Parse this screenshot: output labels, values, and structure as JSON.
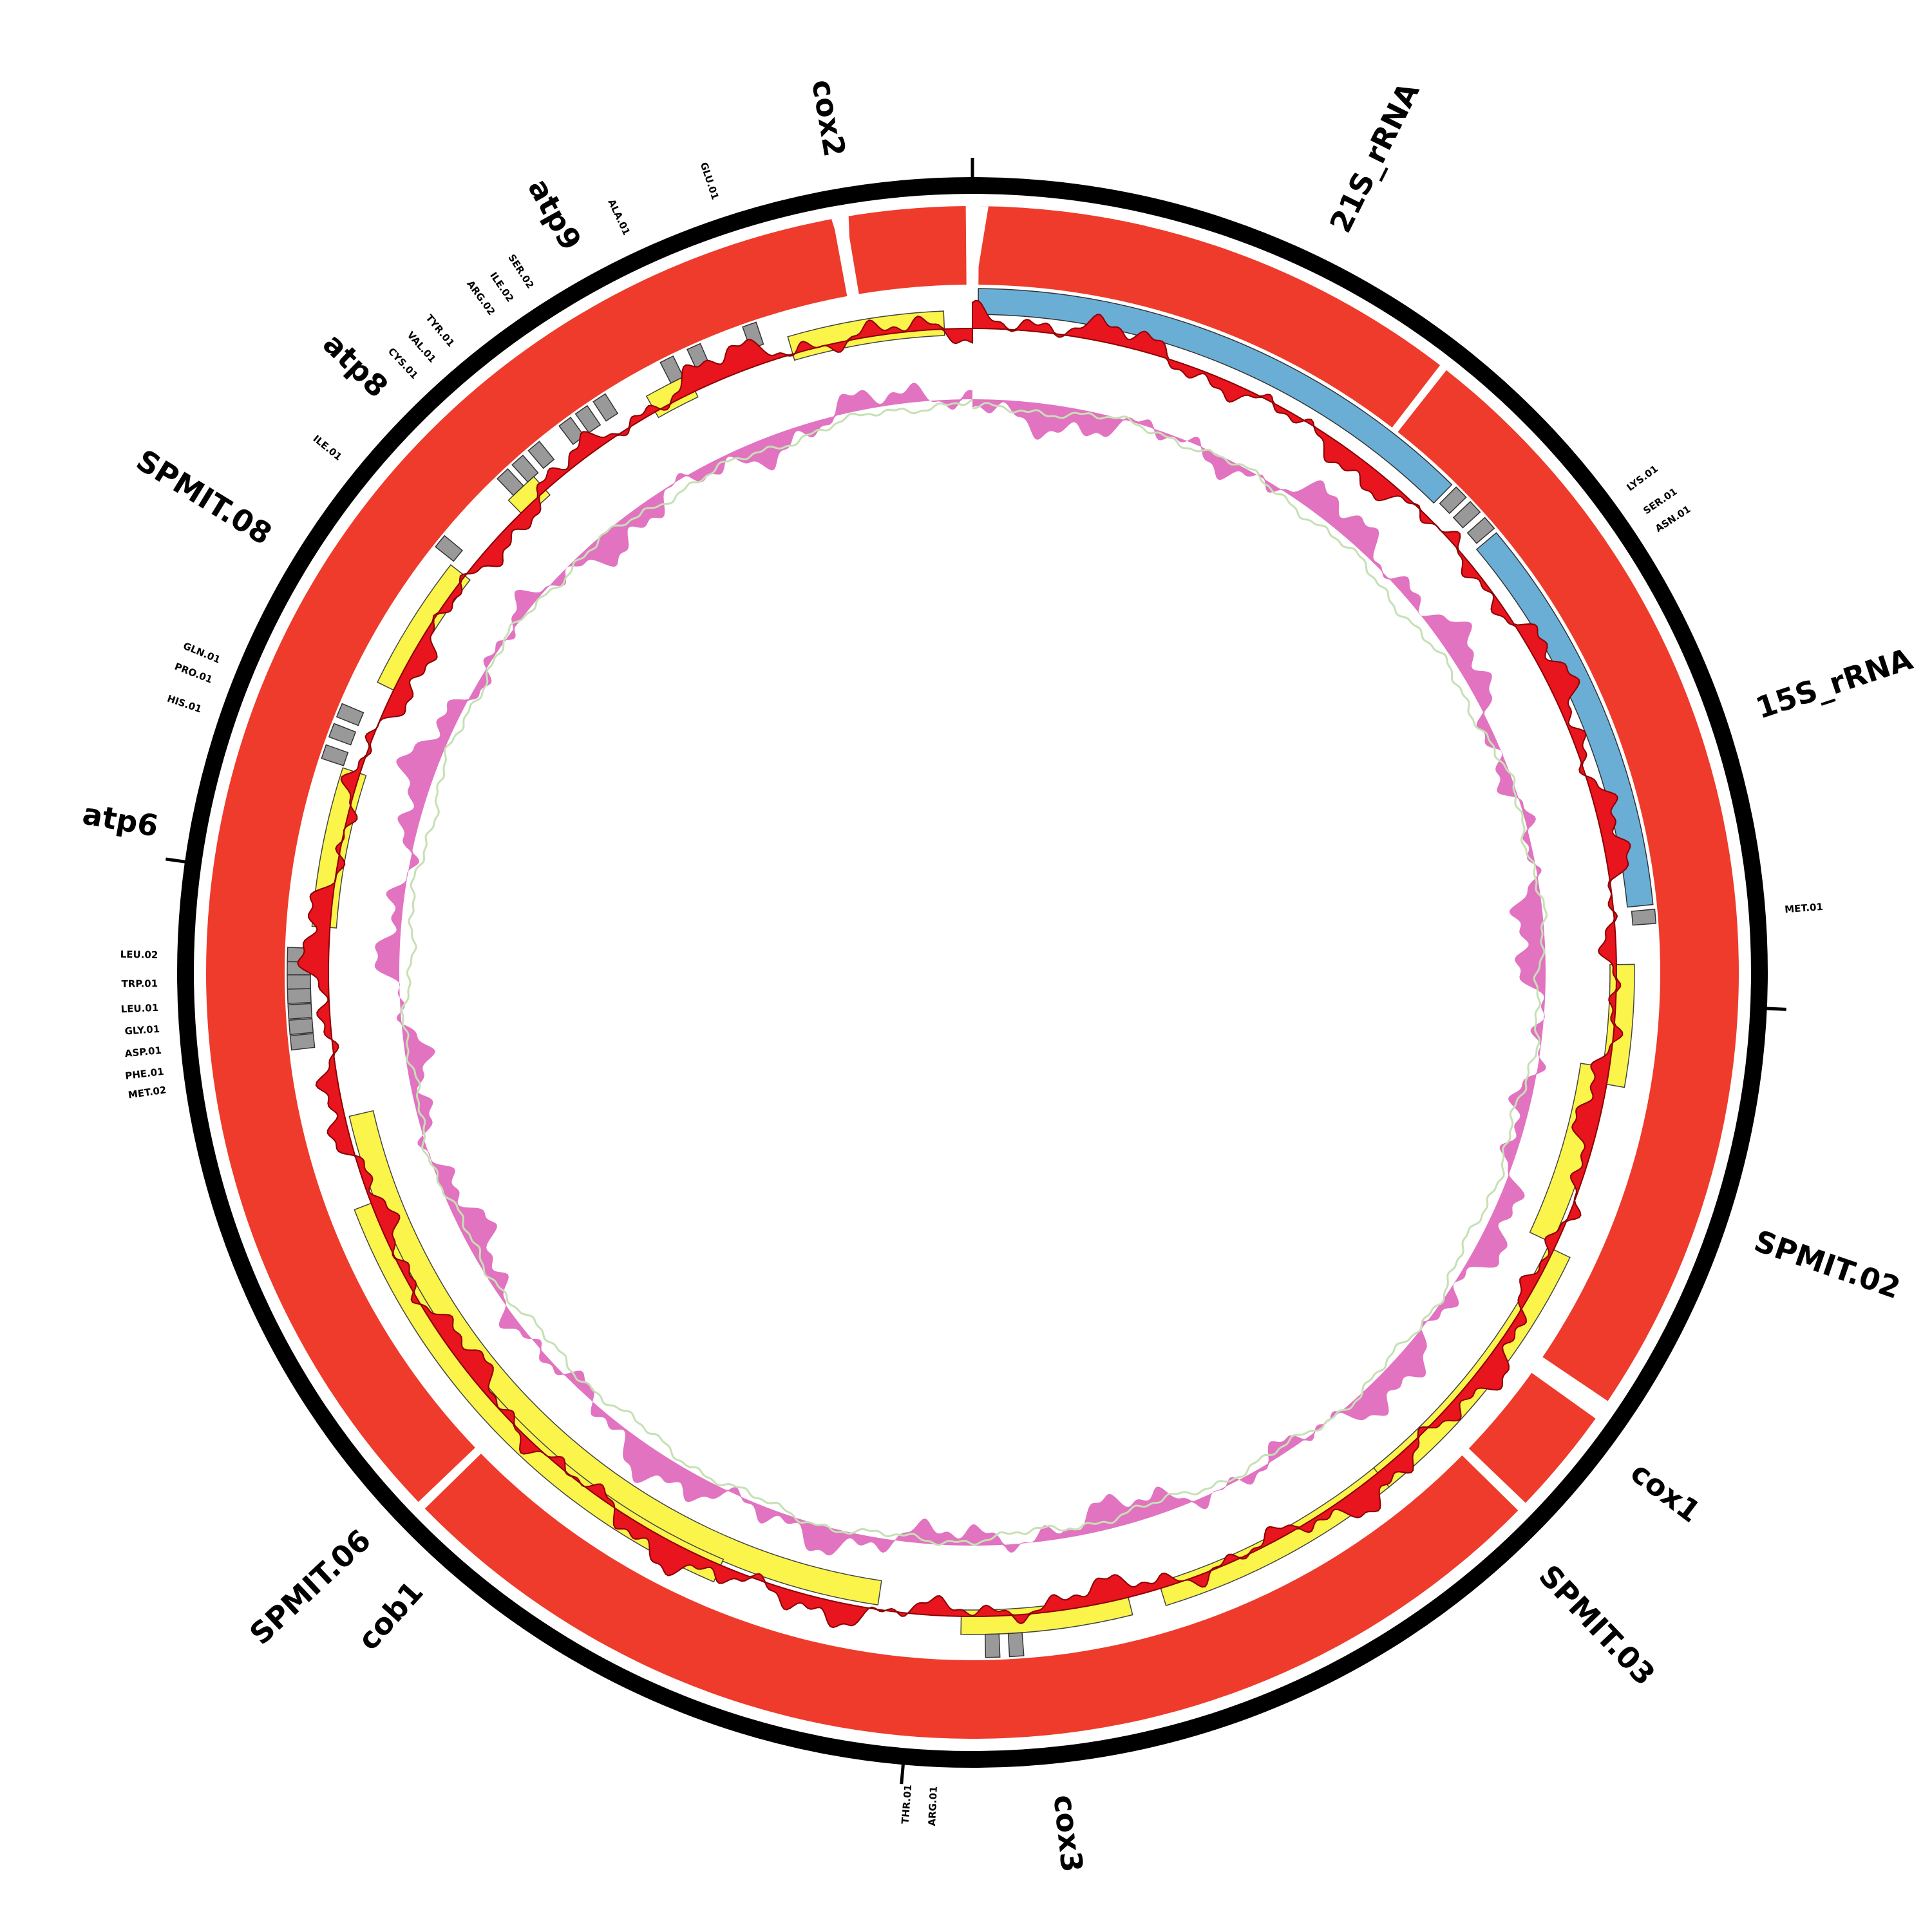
{
  "genes": [
    {
      "label": "cox2"
    },
    {
      "label": "21S_rRNA"
    },
    {
      "label": "15S_rRNA"
    },
    {
      "label": "SPMIT.02"
    },
    {
      "label": "cox1"
    },
    {
      "label": "SPMIT.03"
    },
    {
      "label": "cox3"
    },
    {
      "label": "cob1"
    },
    {
      "label": "SPMIT.06"
    },
    {
      "label": "atp6"
    },
    {
      "label": "SPMIT.08"
    },
    {
      "label": "atp8"
    },
    {
      "label": "atp9"
    }
  ],
  "trnas": [
    {
      "label": "GLU.01"
    },
    {
      "label": "ALA.01"
    },
    {
      "label": "SER.02"
    },
    {
      "label": "ILE.02"
    },
    {
      "label": "ARG.02"
    },
    {
      "label": "TYR.01"
    },
    {
      "label": "VAL.01"
    },
    {
      "label": "CYS.01"
    },
    {
      "label": "ILE.01"
    },
    {
      "label": "GLN.01"
    },
    {
      "label": "PRO.01"
    },
    {
      "label": "HIS.01"
    },
    {
      "label": "LEU.02"
    },
    {
      "label": "TRP.01"
    },
    {
      "label": "LEU.01"
    },
    {
      "label": "GLY.01"
    },
    {
      "label": "ASP.01"
    },
    {
      "label": "PHE.01"
    },
    {
      "label": "MET.02"
    },
    {
      "label": "LYS.01"
    },
    {
      "label": "SER.01"
    },
    {
      "label": "ASN.01"
    },
    {
      "label": "MET.01"
    },
    {
      "label": "THR.01"
    },
    {
      "label": "ARG.01"
    }
  ]
}
